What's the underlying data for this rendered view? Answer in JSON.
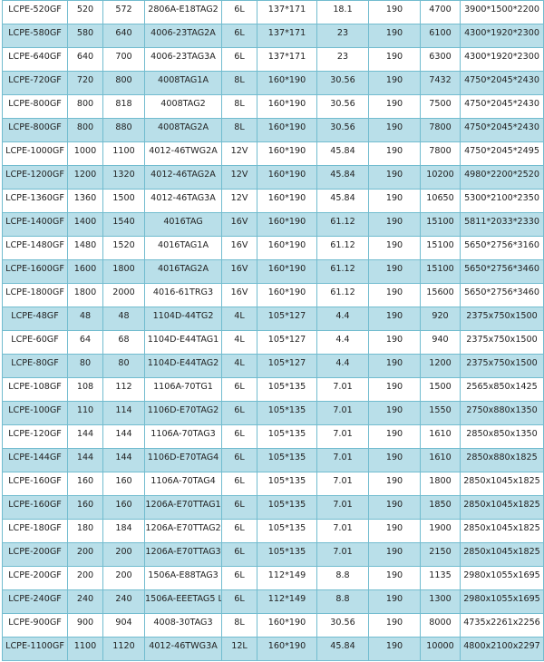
{
  "colors": {
    "row_alt": "#b9dfe9",
    "border": "#72bccf"
  },
  "rows": [
    [
      "LCPE-520GF",
      "520",
      "572",
      "2806A-E18TAG2",
      "6L",
      "137*171",
      "18.1",
      "190",
      "4700",
      "3900*1500*2200"
    ],
    [
      "LCPE-580GF",
      "580",
      "640",
      "4006-23TAG2A",
      "6L",
      "137*171",
      "23",
      "190",
      "6100",
      "4300*1920*2300"
    ],
    [
      "LCPE-640GF",
      "640",
      "700",
      "4006-23TAG3A",
      "6L",
      "137*171",
      "23",
      "190",
      "6300",
      "4300*1920*2300"
    ],
    [
      "LCPE-720GF",
      "720",
      "800",
      "4008TAG1A",
      "8L",
      "160*190",
      "30.56",
      "190",
      "7432",
      "4750*2045*2430"
    ],
    [
      "LCPE-800GF",
      "800",
      "818",
      "4008TAG2",
      "8L",
      "160*190",
      "30.56",
      "190",
      "7500",
      "4750*2045*2430"
    ],
    [
      "LCPE-800GF",
      "800",
      "880",
      "4008TAG2A",
      "8L",
      "160*190",
      "30.56",
      "190",
      "7800",
      "4750*2045*2430"
    ],
    [
      "LCPE-1000GF",
      "1000",
      "1100",
      "4012-46TWG2A",
      "12V",
      "160*190",
      "45.84",
      "190",
      "7800",
      "4750*2045*2495"
    ],
    [
      "LCPE-1200GF",
      "1200",
      "1320",
      "4012-46TAG2A",
      "12V",
      "160*190",
      "45.84",
      "190",
      "10200",
      "4980*2200*2520"
    ],
    [
      "LCPE-1360GF",
      "1360",
      "1500",
      "4012-46TAG3A",
      "12V",
      "160*190",
      "45.84",
      "190",
      "10650",
      "5300*2100*2350"
    ],
    [
      "LCPE-1400GF",
      "1400",
      "1540",
      "4016TAG",
      "16V",
      "160*190",
      "61.12",
      "190",
      "15100",
      "5811*2033*2330"
    ],
    [
      "LCPE-1480GF",
      "1480",
      "1520",
      "4016TAG1A",
      "16V",
      "160*190",
      "61.12",
      "190",
      "15100",
      "5650*2756*3160"
    ],
    [
      "LCPE-1600GF",
      "1600",
      "1800",
      "4016TAG2A",
      "16V",
      "160*190",
      "61.12",
      "190",
      "15100",
      "5650*2756*3460"
    ],
    [
      "LCPE-1800GF",
      "1800",
      "2000",
      "4016-61TRG3",
      "16V",
      "160*190",
      "61.12",
      "190",
      "15600",
      "5650*2756*3460"
    ],
    [
      "LCPE-48GF",
      "48",
      "48",
      "1104D-44TG2",
      "4L",
      "105*127",
      "4.4",
      "190",
      "920",
      "2375x750x1500"
    ],
    [
      "LCPE-60GF",
      "64",
      "68",
      "1104D-E44TAG1",
      "4L",
      "105*127",
      "4.4",
      "190",
      "940",
      "2375x750x1500"
    ],
    [
      "LCPE-80GF",
      "80",
      "80",
      "1104D-E44TAG2",
      "4L",
      "105*127",
      "4.4",
      "190",
      "1200",
      "2375x750x1500"
    ],
    [
      "LCPE-108GF",
      "108",
      "112",
      "1106A-70TG1",
      "6L",
      "105*135",
      "7.01",
      "190",
      "1500",
      "2565x850x1425"
    ],
    [
      "LCPE-100GF",
      "110",
      "114",
      "1106D-E70TAG2",
      "6L",
      "105*135",
      "7.01",
      "190",
      "1550",
      "2750x880x1350"
    ],
    [
      "LCPE-120GF",
      "144",
      "144",
      "1106A-70TAG3",
      "6L",
      "105*135",
      "7.01",
      "190",
      "1610",
      "2850x850x1350"
    ],
    [
      "LCPE-144GF",
      "144",
      "144",
      "1106D-E70TAG4",
      "6L",
      "105*135",
      "7.01",
      "190",
      "1610",
      "2850x880x1825"
    ],
    [
      "LCPE-160GF",
      "160",
      "160",
      "1106A-70TAG4",
      "6L",
      "105*135",
      "7.01",
      "190",
      "1800",
      "2850x1045x1825"
    ],
    [
      "LCPE-160GF",
      "160",
      "160",
      "1206A-E70TTAG1",
      "6L",
      "105*135",
      "7.01",
      "190",
      "1850",
      "2850x1045x1825"
    ],
    [
      "LCPE-180GF",
      "180",
      "184",
      "1206A-E70TTAG2",
      "6L",
      "105*135",
      "7.01",
      "190",
      "1900",
      "2850x1045x1825"
    ],
    [
      "LCPE-200GF",
      "200",
      "200",
      "1206A-E70TTAG3",
      "6L",
      "105*135",
      "7.01",
      "190",
      "2150",
      "2850x1045x1825"
    ],
    [
      "LCPE-200GF",
      "200",
      "200",
      "1506A-E88TAG3",
      "6L",
      "112*149",
      "8.8",
      "190",
      "1135",
      "2980x1055x1695"
    ],
    [
      "LCPE-240GF",
      "240",
      "240",
      "1506A-EEETAG5 L",
      "6L",
      "112*149",
      "8.8",
      "190",
      "1300",
      "2980x1055x1695"
    ],
    [
      "LCPE-900GF",
      "900",
      "904",
      "4008-30TAG3",
      "8L",
      "160*190",
      "30.56",
      "190",
      "8000",
      "4735x2261x2256"
    ],
    [
      "LCPE-1100GF",
      "1100",
      "1120",
      "4012-46TWG3A",
      "12L",
      "160*190",
      "45.84",
      "190",
      "10000",
      "4800x2100x2297"
    ]
  ]
}
